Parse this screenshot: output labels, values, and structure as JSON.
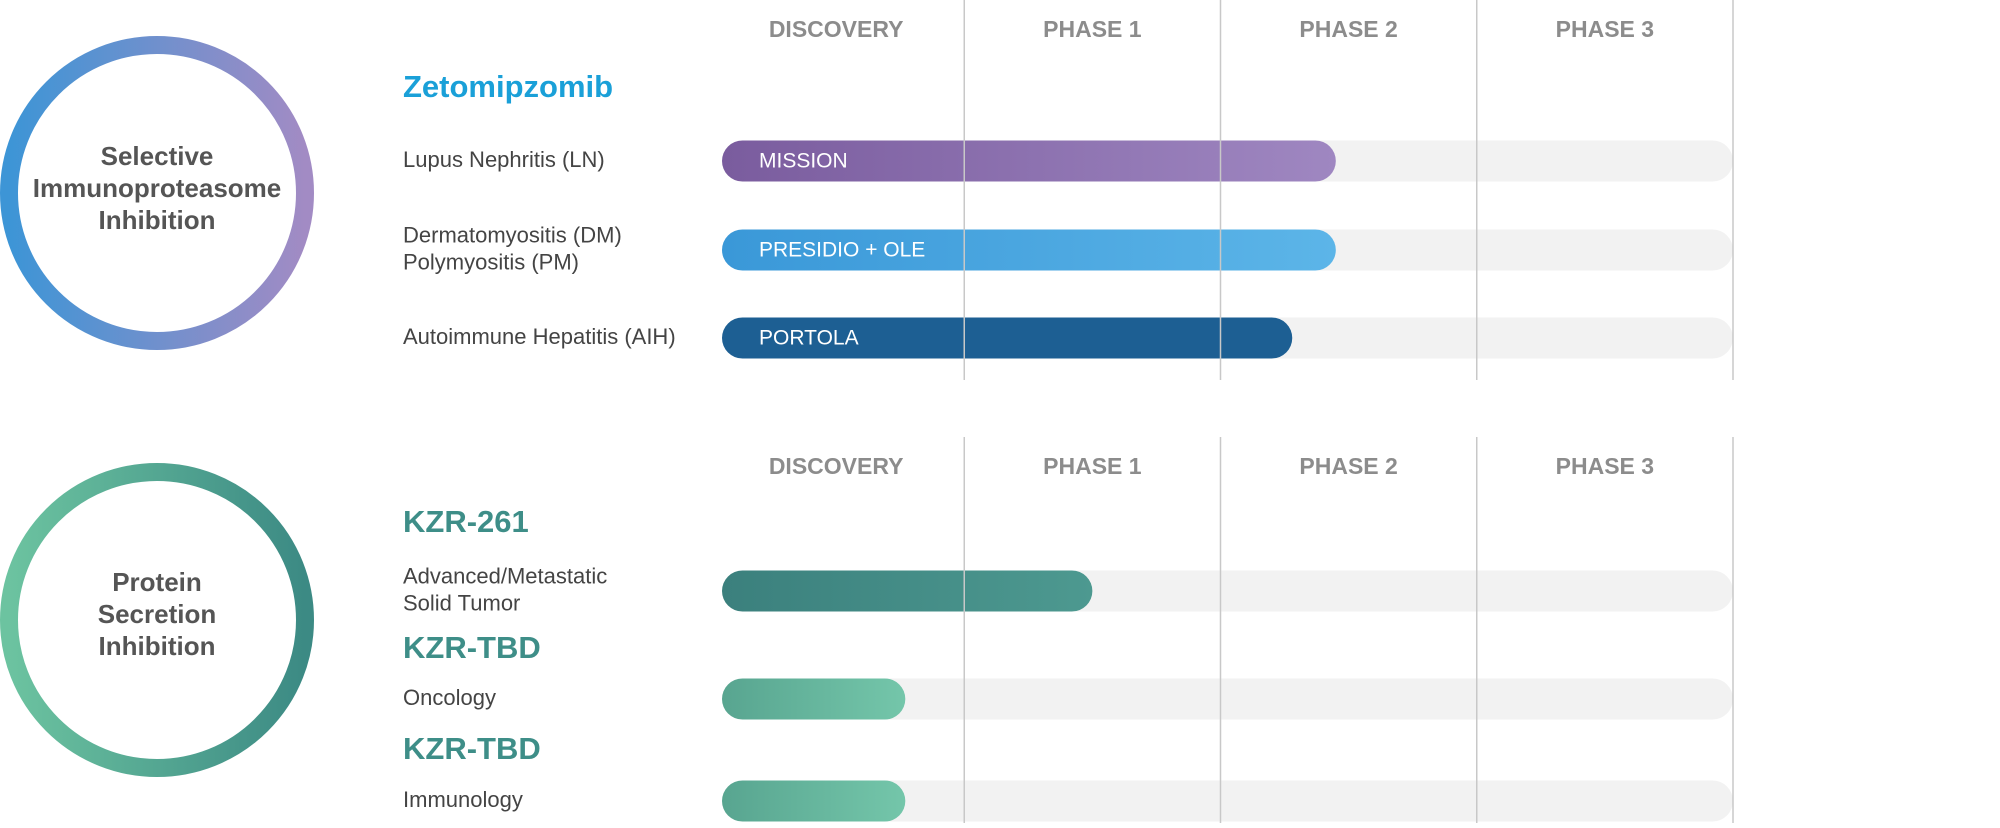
{
  "panels": [
    {
      "mechanism": [
        "Selective",
        "Immunoproteasome",
        "Inhibition"
      ],
      "circle_colors": [
        "#3d95d6",
        "#a28bc4"
      ],
      "phases": [
        "DISCOVERY",
        "PHASE 1",
        "PHASE 2",
        "PHASE 3"
      ],
      "progress_range": [
        0,
        4
      ],
      "programs": [
        {
          "name": "Zetomipzomib",
          "color": "#1aa0d8",
          "indications": [
            {
              "label": [
                "Lupus Nephritis (LN)"
              ],
              "study": "MISSION",
              "progress": 2.45,
              "color": [
                "#7a5c9e",
                "#9f87c1"
              ]
            },
            {
              "label": [
                "Dermatomyositis (DM)",
                "Polymyositis (PM)"
              ],
              "study": "PRESIDIO + OLE",
              "progress": 2.45,
              "color": [
                "#3a98d8",
                "#5cb5e8"
              ]
            },
            {
              "label": [
                "Autoimmune Hepatitis (AIH)"
              ],
              "study": "PORTOLA",
              "progress": 2.28,
              "color": [
                "#1d5f93",
                "#1d5f93"
              ]
            }
          ]
        }
      ]
    },
    {
      "mechanism": [
        "Protein",
        "Secretion",
        "Inhibition"
      ],
      "circle_colors": [
        "#6cc3a0",
        "#3c8a84"
      ],
      "phases": [
        "DISCOVERY",
        "PHASE 1",
        "PHASE 2",
        "PHASE 3"
      ],
      "progress_range": [
        0,
        4
      ],
      "programs": [
        {
          "name": "KZR-261",
          "color": "#3e8e88",
          "indications": [
            {
              "label": [
                "Advanced/Metastatic",
                "Solid Tumor"
              ],
              "progress": 1.5,
              "color": [
                "#3b807d",
                "#4d9990"
              ]
            }
          ]
        },
        {
          "name": "KZR-TBD",
          "color": "#3e8e88",
          "indications": [
            {
              "label": [
                "Oncology"
              ],
              "progress": 0.77,
              "color": [
                "#58a590",
                "#74c6aa"
              ]
            }
          ]
        },
        {
          "name": "KZR-TBD",
          "color": "#3e8e88",
          "indications": [
            {
              "label": [
                "Immunology"
              ],
              "progress": 0.77,
              "color": [
                "#58a590",
                "#74c6aa"
              ]
            }
          ]
        }
      ]
    }
  ]
}
